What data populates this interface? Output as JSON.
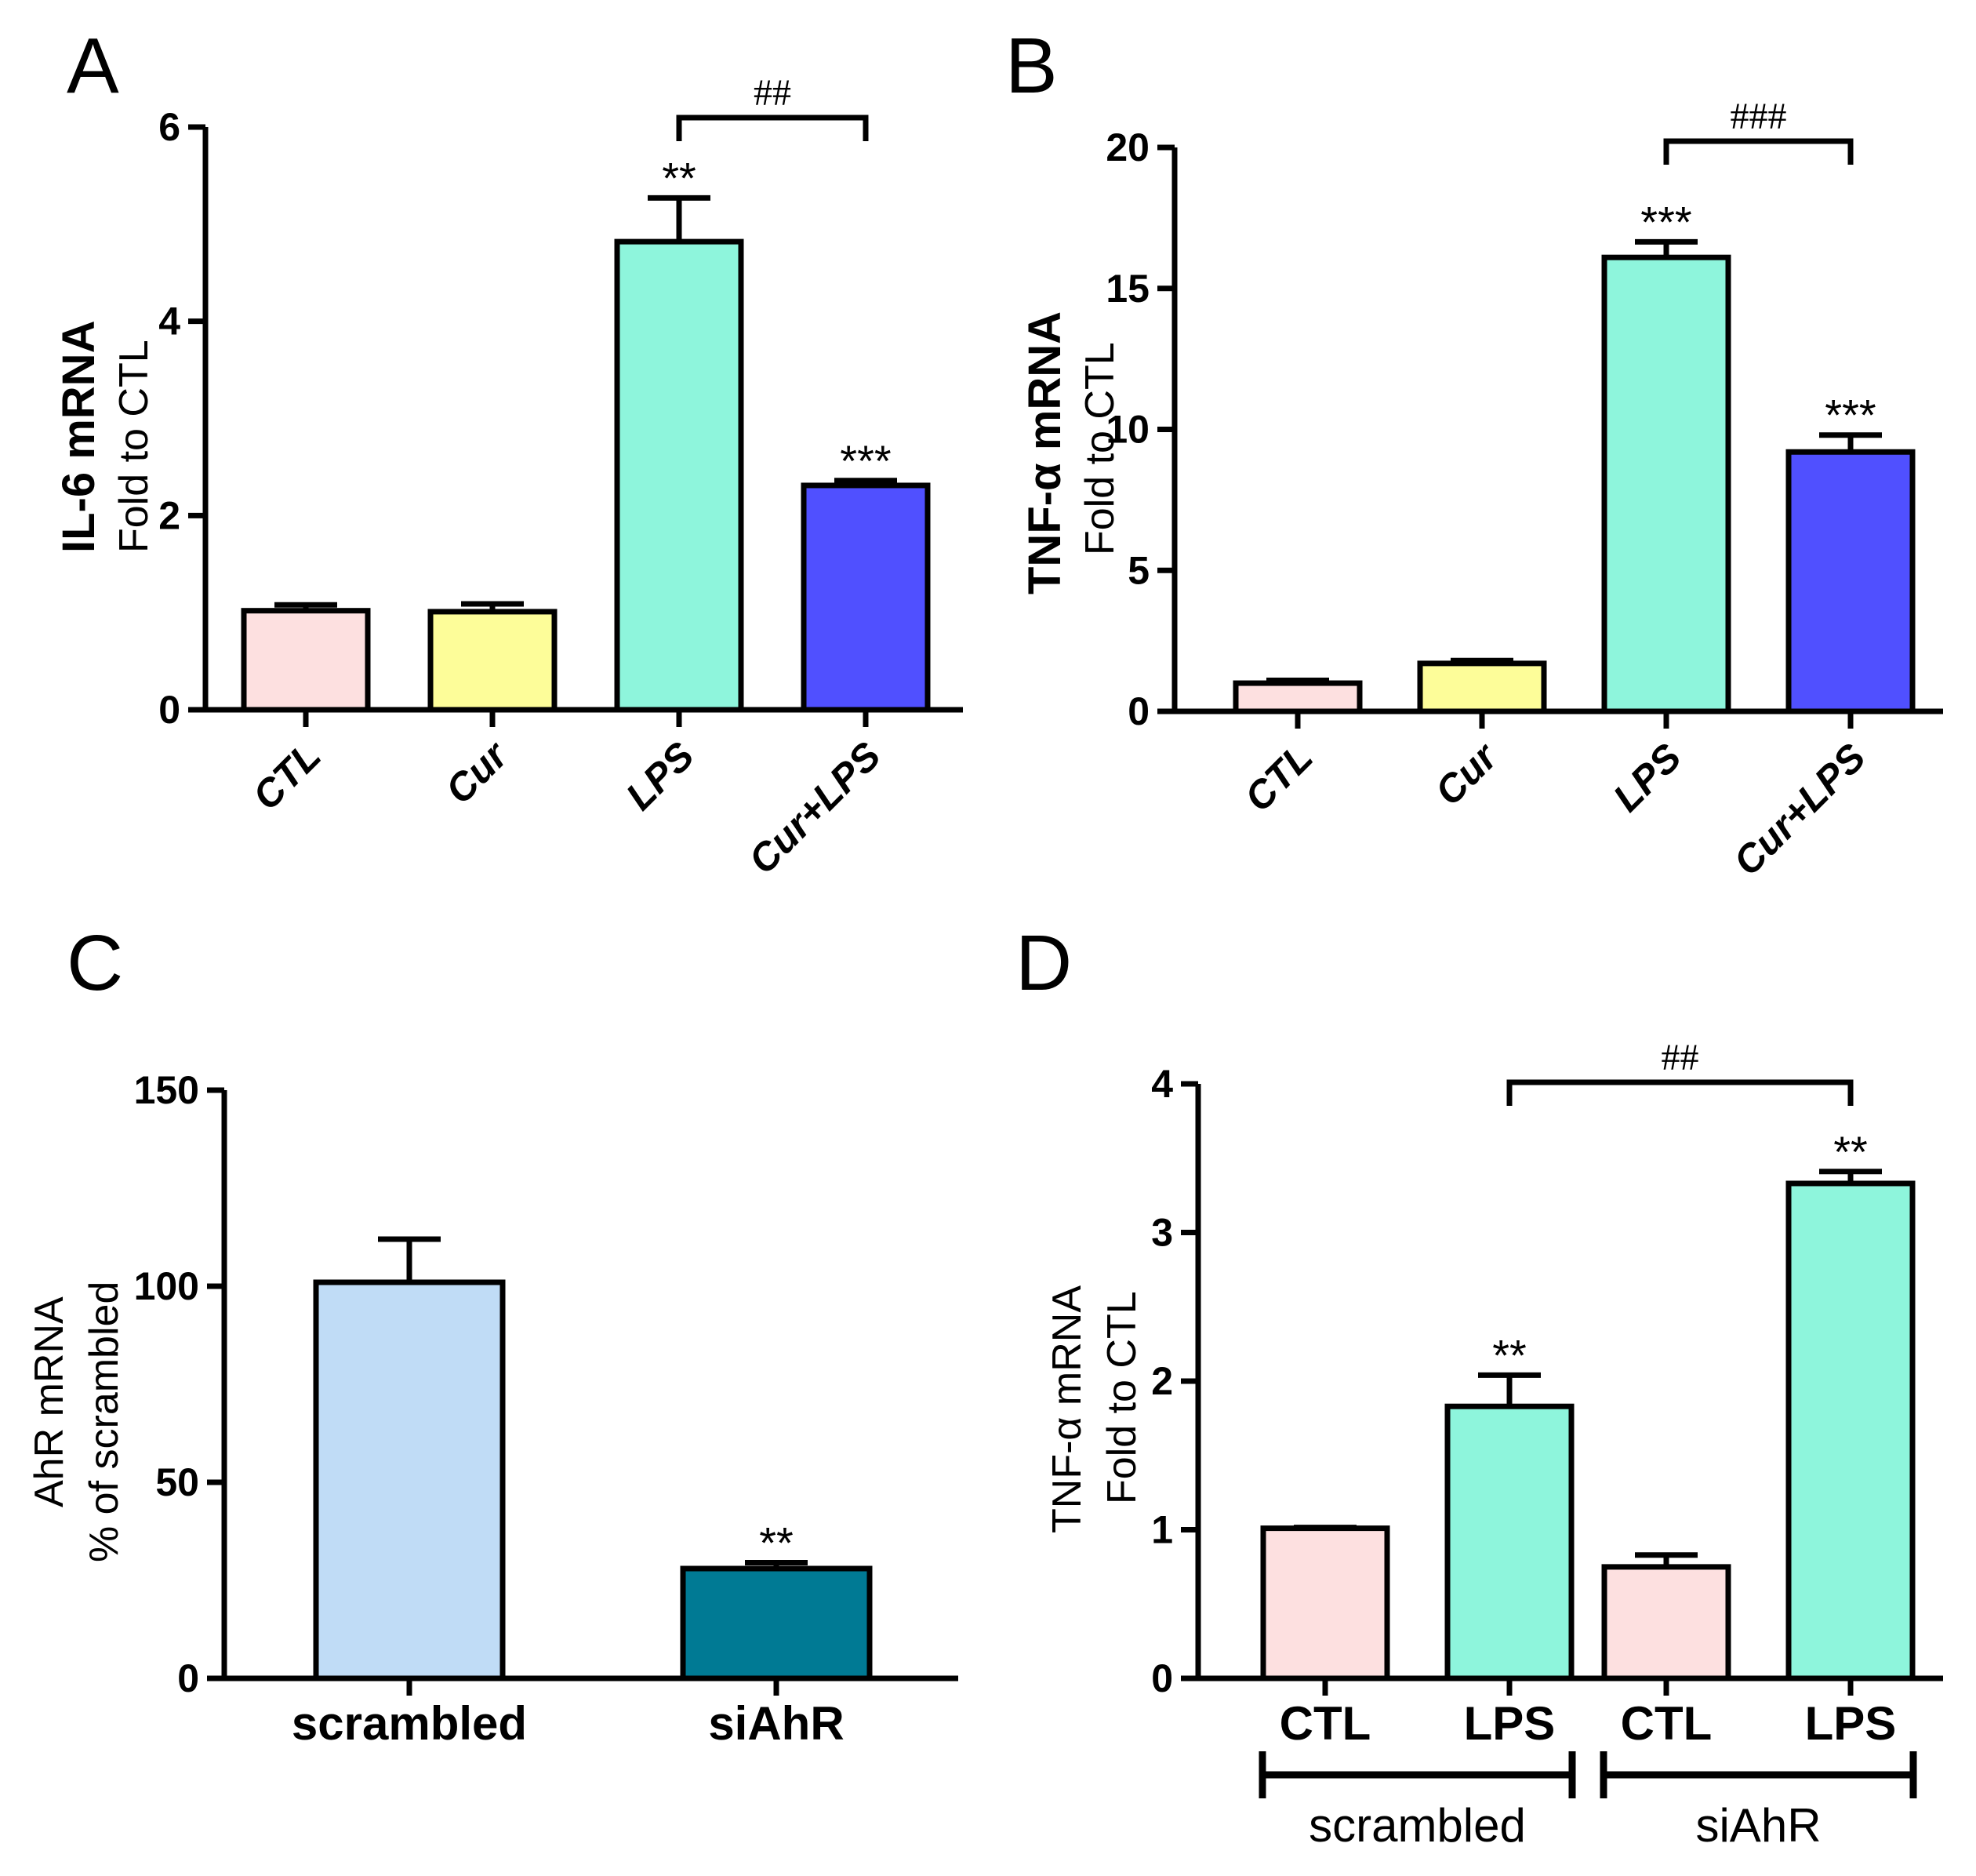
{
  "chart_data": [
    {
      "panel": "A",
      "type": "bar",
      "title": "",
      "ylabel_main": "IL-6 mRNA",
      "ylabel_sub": "Fold to CTL",
      "categories": [
        "CTL",
        "Cur",
        "LPS",
        "Cur+LPS"
      ],
      "values": [
        1.02,
        1.01,
        4.82,
        2.31
      ],
      "errors": [
        0.06,
        0.08,
        0.45,
        0.05
      ],
      "colors": [
        "#fde0e0",
        "#fdfd99",
        "#8ef5dc",
        "#5050ff"
      ],
      "significance": [
        "",
        "",
        "**",
        "***"
      ],
      "ylim": [
        0,
        6
      ],
      "yticks": [
        0,
        2,
        4,
        6
      ],
      "brackets": [
        {
          "from": 2,
          "to": 3,
          "label": "##"
        }
      ]
    },
    {
      "panel": "B",
      "type": "bar",
      "title": "",
      "ylabel_main": "TNF-α mRNA",
      "ylabel_sub": "Fold to CTL",
      "categories": [
        "CTL",
        "Cur",
        "LPS",
        "Cur+LPS"
      ],
      "values": [
        1.0,
        1.7,
        16.1,
        9.2
      ],
      "errors": [
        0.1,
        0.1,
        0.55,
        0.6
      ],
      "colors": [
        "#fde0e0",
        "#fdfd99",
        "#8ef5dc",
        "#5050ff"
      ],
      "significance": [
        "",
        "",
        "***",
        "***"
      ],
      "ylim": [
        0,
        20
      ],
      "yticks": [
        0,
        5,
        10,
        15,
        20
      ],
      "brackets": [
        {
          "from": 2,
          "to": 3,
          "label": "###"
        }
      ]
    },
    {
      "panel": "C",
      "type": "bar",
      "title": "",
      "ylabel_main": "AhR mRNA",
      "ylabel_sub": "% of scrambled",
      "categories": [
        "scrambled",
        "siAhR"
      ],
      "values": [
        101,
        28
      ],
      "errors": [
        11,
        1.5
      ],
      "colors": [
        "#c0dcf6",
        "#007a94"
      ],
      "significance": [
        "",
        "**"
      ],
      "ylim": [
        0,
        150
      ],
      "yticks": [
        0,
        50,
        100,
        150
      ],
      "brackets": []
    },
    {
      "panel": "D",
      "type": "bar",
      "title": "",
      "ylabel_main": "TNF-α mRNA",
      "ylabel_sub": "Fold to CTL",
      "categories": [
        "CTL",
        "LPS",
        "CTL",
        "LPS"
      ],
      "groups": [
        {
          "label": "scrambled",
          "from": 0,
          "to": 1
        },
        {
          "label": "siAhR",
          "from": 2,
          "to": 3
        }
      ],
      "values": [
        1.01,
        1.83,
        0.75,
        3.33
      ],
      "errors": [
        0.005,
        0.21,
        0.08,
        0.08
      ],
      "colors": [
        "#fde0e0",
        "#8ef5dc",
        "#fde0e0",
        "#8ef5dc"
      ],
      "significance": [
        "",
        "**",
        "",
        "**"
      ],
      "ylim": [
        0,
        4
      ],
      "yticks": [
        0,
        1,
        2,
        3,
        4
      ],
      "brackets": [
        {
          "from": 1,
          "to": 3,
          "label": "##"
        }
      ]
    }
  ]
}
